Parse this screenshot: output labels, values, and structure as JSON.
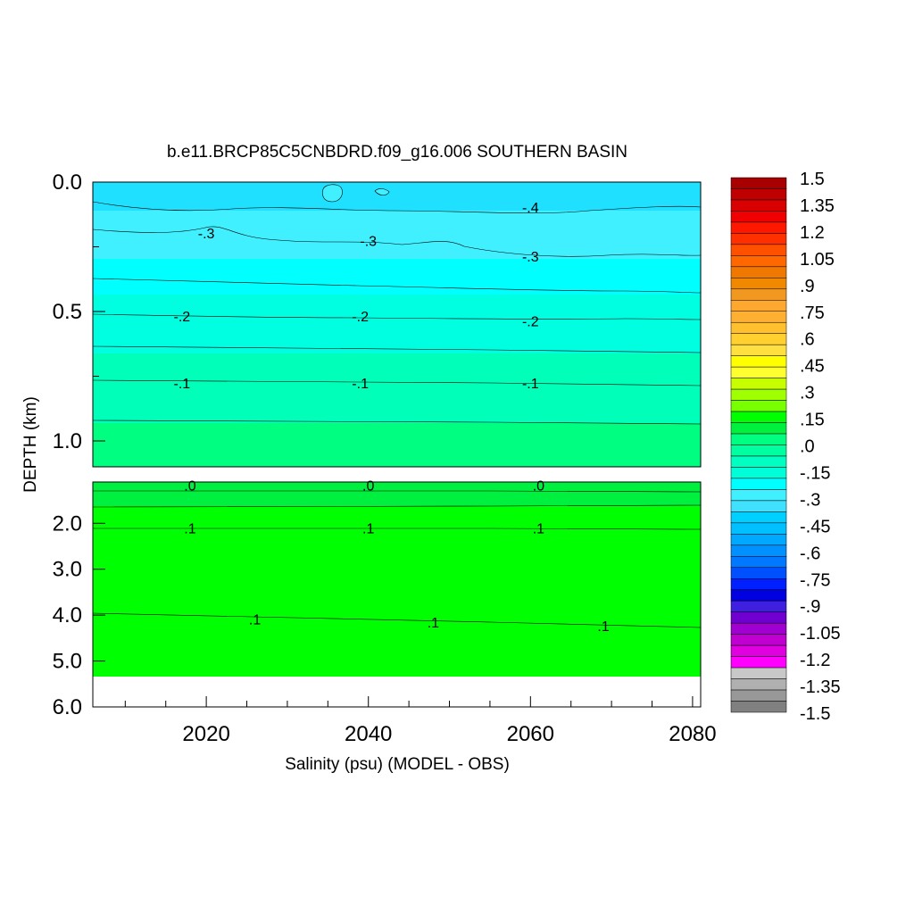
{
  "chart_data": {
    "type": "heatmap",
    "title": "b.e11.BRCP85C5CNBDRD.f09_g16.006 SOUTHERN BASIN",
    "xlabel": "Salinity (psu) (MODEL - OBS)",
    "ylabel": "DEPTH (km)",
    "xlim": [
      2006,
      2081
    ],
    "x_ticks": [
      "2020",
      "2040",
      "2060",
      "2080"
    ],
    "upper_panel": {
      "ylim": [
        0.0,
        1.1
      ],
      "y_ticks": [
        "0.0",
        "0.5",
        "1.0"
      ]
    },
    "lower_panel": {
      "ylim": [
        1.1,
        6.0
      ],
      "y_ticks": [
        "2.0",
        "3.0",
        "4.0",
        "5.0",
        "6.0"
      ],
      "data_bottom_km": 5.35
    },
    "colorbar_labels": [
      "1.5",
      "1.35",
      "1.2",
      "1.05",
      ".9",
      ".75",
      ".6",
      ".45",
      ".3",
      ".15",
      ".0",
      "-.15",
      "-.3",
      "-.45",
      "-.6",
      "-.75",
      "-.9",
      "-1.05",
      "-1.2",
      "-1.35",
      "-1.5"
    ],
    "colorbar_colors": [
      "#a80000",
      "#c00000",
      "#d80000",
      "#f00000",
      "#ff1800",
      "#ff3000",
      "#ff5000",
      "#ff6800",
      "#f07800",
      "#f08800",
      "#f09820",
      "#ffa830",
      "#ffb030",
      "#ffc030",
      "#ffd030",
      "#ffe040",
      "#ffff00",
      "#ffff30",
      "#c8ff00",
      "#a0ff00",
      "#78ff00",
      "#00ff00",
      "#00f040",
      "#00ff80",
      "#00ffa0",
      "#00ffc0",
      "#00ffd8",
      "#00ffff",
      "#40f0ff",
      "#40e0ff",
      "#00d0ff",
      "#00c0ff",
      "#00a8ff",
      "#0090ff",
      "#0078ff",
      "#0050ff",
      "#0020ff",
      "#0000e0",
      "#4020e0",
      "#7000d0",
      "#a000d0",
      "#c000d0",
      "#e000e0",
      "#ff00ff",
      "#c8c8c8",
      "#b0b0b0",
      "#989898",
      "#808080"
    ],
    "contour_labels": [
      {
        "text": "-.4",
        "x": 2060,
        "depth": 0.1
      },
      {
        "text": "-.3",
        "x": 2020,
        "depth": 0.2
      },
      {
        "text": "-.3",
        "x": 2040,
        "depth": 0.23
      },
      {
        "text": "-.3",
        "x": 2060,
        "depth": 0.29
      },
      {
        "text": "-.2",
        "x": 2017,
        "depth": 0.52
      },
      {
        "text": "-.2",
        "x": 2039,
        "depth": 0.52
      },
      {
        "text": "-.2",
        "x": 2060,
        "depth": 0.54
      },
      {
        "text": "-.1",
        "x": 2017,
        "depth": 0.78
      },
      {
        "text": "-.1",
        "x": 2039,
        "depth": 0.78
      },
      {
        "text": "-.1",
        "x": 2060,
        "depth": 0.78
      },
      {
        "text": ".0",
        "x": 2018,
        "depth": 1.19
      },
      {
        "text": ".0",
        "x": 2040,
        "depth": 1.19
      },
      {
        "text": ".0",
        "x": 2061,
        "depth": 1.19
      },
      {
        "text": ".1",
        "x": 2018,
        "depth": 2.12
      },
      {
        "text": ".1",
        "x": 2040,
        "depth": 2.12
      },
      {
        "text": ".1",
        "x": 2061,
        "depth": 2.12
      },
      {
        "text": ".1",
        "x": 2026,
        "depth": 4.1
      },
      {
        "text": ".1",
        "x": 2048,
        "depth": 4.17
      },
      {
        "text": ".1",
        "x": 2069,
        "depth": 4.25
      }
    ]
  }
}
